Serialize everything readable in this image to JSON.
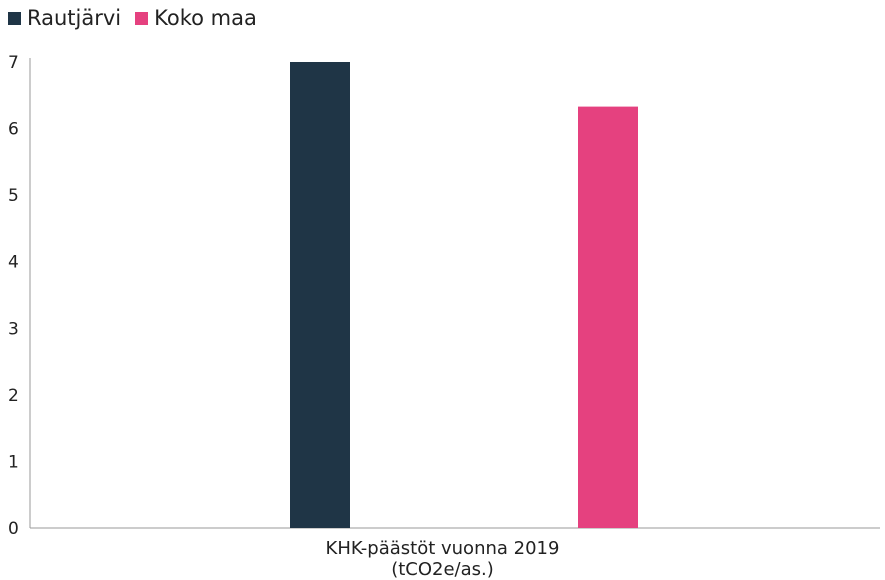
{
  "colors": {
    "series_0": "#1f3546",
    "series_1": "#e5417f",
    "axis": "#9a9a9a"
  },
  "chart_data": {
    "type": "bar",
    "categories": [
      "KHK-päästöt vuonna 2019 (tCO2e/as.)"
    ],
    "category_lines": [
      "KHK-päästöt vuonna 2019",
      "(tCO2e/as.)"
    ],
    "series": [
      {
        "name": "Rautjärvi",
        "values": [
          7.0
        ]
      },
      {
        "name": "Koko maa",
        "values": [
          6.33
        ]
      }
    ],
    "ylim": [
      0,
      7
    ],
    "yticks": [
      "0",
      "1",
      "2",
      "3",
      "4",
      "5",
      "6",
      "7"
    ],
    "grid": false,
    "legend_position": "top-left"
  }
}
